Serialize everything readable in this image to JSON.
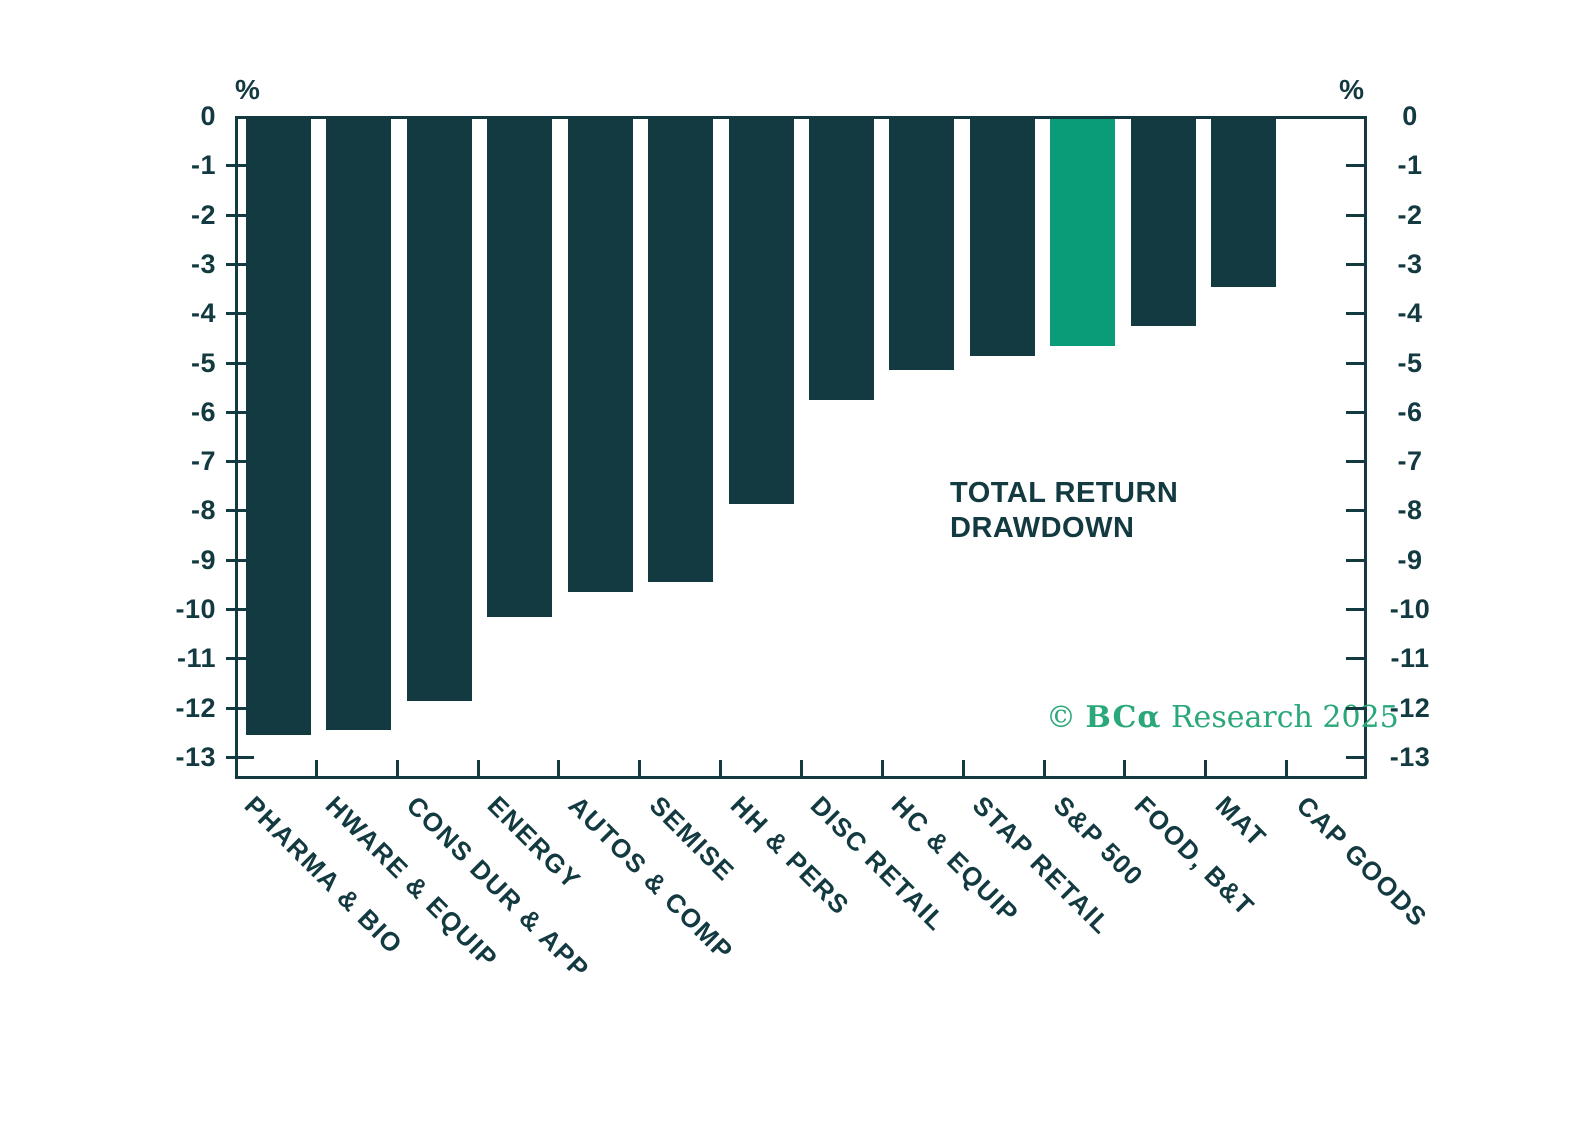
{
  "chart_data": {
    "type": "bar",
    "annotation_lines": [
      "TOTAL RETURN",
      "DRAWDOWN"
    ],
    "unit": "%",
    "categories": [
      "PHARMA & BIO",
      "HWARE & EQUIP",
      "CONS DUR & APP",
      "ENERGY",
      "AUTOS & COMP",
      "SEMISE",
      "HH & PERS",
      "DISC RETAIL",
      "HC & EQUIP",
      "STAP RETAIL",
      "S&P 500",
      "FOOD, B&T",
      "MAT",
      "CAP GOODS"
    ],
    "values": [
      -12.5,
      -12.4,
      -11.8,
      -10.1,
      -9.6,
      -9.4,
      -7.8,
      -5.7,
      -5.1,
      -4.8,
      -4.6,
      -4.2,
      -3.4,
      0
    ],
    "highlight_index": 10,
    "highlight_category": "S&P 500",
    "y_axis": {
      "unit_left": "%",
      "unit_right": "%",
      "max": 0,
      "min": -13,
      "step": -1,
      "tick_labels": [
        "0",
        "-1",
        "-2",
        "-3",
        "-4",
        "-5",
        "-6",
        "-7",
        "-8",
        "-9",
        "-10",
        "-11",
        "-12",
        "-13"
      ]
    },
    "grid": false,
    "legend_position": "none",
    "colors": {
      "bar": "#123a40",
      "highlight": "#0a9c78",
      "text": "#123a40",
      "copyright_green": "#2aa879",
      "background": "#ffffff"
    }
  },
  "footer": {
    "copyright_prefix": "© ",
    "copyright_brand": "BCα",
    "copyright_suffix": " Research 2025"
  }
}
